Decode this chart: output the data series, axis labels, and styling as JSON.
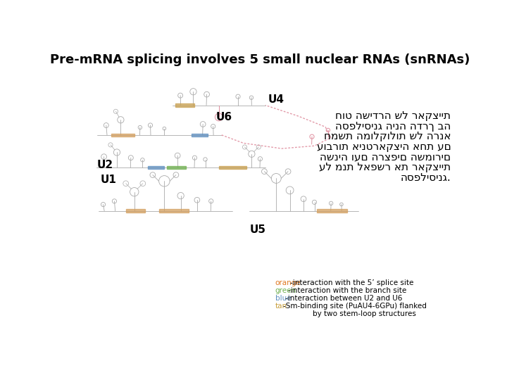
{
  "title": "Pre-mRNA splicing involves 5 small nuclear RNAs (snRNAs)",
  "title_fontsize": 13,
  "title_fontweight": "bold",
  "bg_color": "#ffffff",
  "label_u1": "U1",
  "label_u2": "U2",
  "label_u4": "U4",
  "label_u5": "U5",
  "label_u6": "U6",
  "label_fontsize": 11,
  "label_fontweight": "bold",
  "hebrew_lines": [
    "חוט השידרה של ראקציית",
    "הספליסינג הינה הדרך בה",
    "חמשת המולקולות של הרנא",
    "עוברות אינטראקציה אחת עם",
    "השניה ועם הרצפים השמורים",
    "על מנת לאפשר את ראקציית",
    "הספליסינג."
  ],
  "hebrew_fontsize": 11,
  "legend_lines": [
    {
      "color": "#e07820",
      "label_colored": "orange",
      "label_black": "-interaction with the 5’ splice site"
    },
    {
      "color": "#70b050",
      "label_colored": "green",
      "label_black": "-interaction with the branch site"
    },
    {
      "color": "#6090c0",
      "label_colored": "blue",
      "label_black": "-interaction between U2 and U6"
    },
    {
      "color": "#c8a040",
      "label_colored": "tan",
      "label_black": "-Sm-binding site (PuAU4-6GPu) flanked"
    }
  ],
  "legend_last_line": "by two stem-loop structures",
  "legend_fontsize": 7.5,
  "rna_color": "#aaaaaa",
  "rna_lw": 0.6,
  "orange_color": "#d4a060",
  "green_color": "#70b050",
  "blue_color": "#6090c0",
  "tan_color": "#c8a050",
  "pink_color": "#e090a0"
}
